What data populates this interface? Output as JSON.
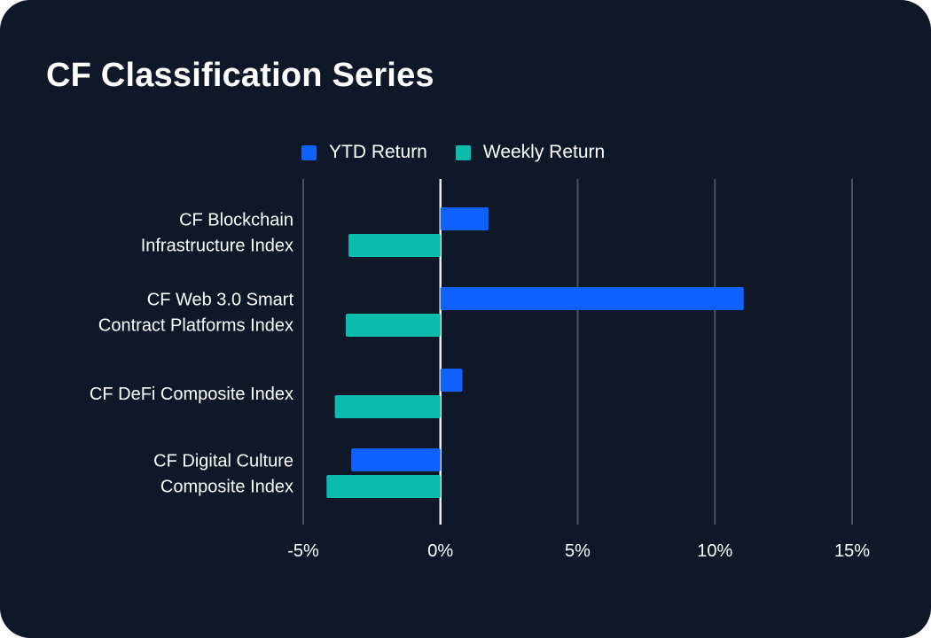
{
  "chart_data": {
    "type": "bar",
    "orientation": "horizontal",
    "title": "CF Classification Series",
    "categories": [
      [
        "CF Blockchain",
        "Infrastructure Index"
      ],
      [
        "CF Web 3.0 Smart",
        "Contract Platforms Index"
      ],
      [
        "CF DeFi Composite Index"
      ],
      [
        "CF Digital Culture",
        "Composite Index"
      ]
    ],
    "series": [
      {
        "name": "YTD Return",
        "color": "#0f62fe",
        "values": [
          1.75,
          11.05,
          0.8,
          -3.25
        ]
      },
      {
        "name": "Weekly Return",
        "color": "#08bdab",
        "values": [
          -3.35,
          -3.45,
          -3.85,
          -4.15
        ]
      }
    ],
    "xlim": [
      -5,
      15
    ],
    "xticks": [
      -5,
      0,
      5,
      10,
      15
    ],
    "xtick_labels": [
      "-5%",
      "0%",
      "5%",
      "10%",
      "15%"
    ],
    "grid": true,
    "legend_position": "top"
  }
}
